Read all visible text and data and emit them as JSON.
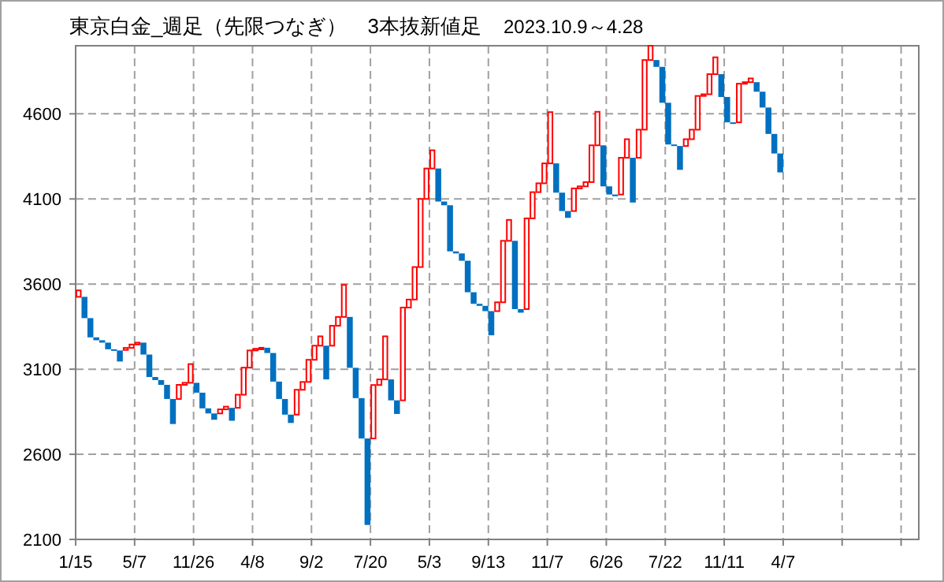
{
  "chart_data": {
    "type": "bar",
    "title": "東京白金_週足（先限つなぎ）　3本抜新値足",
    "subtitle": "2023.10.9～4.28",
    "categories": [
      "1/15",
      null,
      null,
      null,
      null,
      null,
      null,
      null,
      null,
      null,
      "5/7",
      null,
      null,
      null,
      null,
      null,
      null,
      null,
      null,
      null,
      "11/26",
      null,
      null,
      null,
      null,
      null,
      null,
      null,
      null,
      null,
      "4/8",
      null,
      null,
      null,
      null,
      null,
      null,
      null,
      null,
      null,
      "9/2",
      null,
      null,
      null,
      null,
      null,
      null,
      null,
      null,
      null,
      "7/20",
      null,
      null,
      null,
      null,
      null,
      null,
      null,
      null,
      null,
      "5/3",
      null,
      null,
      null,
      null,
      null,
      null,
      null,
      null,
      null,
      "9/13",
      null,
      null,
      null,
      null,
      null,
      null,
      null,
      null,
      null,
      "11/7",
      null,
      null,
      null,
      null,
      null,
      null,
      null,
      null,
      null,
      "6/26",
      null,
      null,
      null,
      null,
      null,
      null,
      null,
      null,
      null,
      "7/22",
      null,
      null,
      null,
      null,
      null,
      null,
      null,
      null,
      null,
      "11/11",
      null,
      null,
      null,
      null,
      null,
      null,
      null,
      null,
      null,
      "4/7",
      null,
      null,
      null,
      null,
      null,
      null,
      null,
      null,
      null,
      null,
      null,
      null,
      null,
      null,
      null,
      null,
      null,
      null,
      null,
      null,
      null,
      null
    ],
    "base": [
      3525,
      3525,
      3400,
      3287,
      3270,
      3256,
      3217,
      3210,
      3213,
      3225,
      3245,
      3256,
      3186,
      3054,
      3036,
      3008,
      2925,
      2925,
      3008,
      3020,
      3020,
      2962,
      2870,
      2840,
      2840,
      2864,
      2873,
      2873,
      2950,
      3109,
      3210,
      3220,
      3226,
      3195,
      3027,
      2925,
      2833,
      2833,
      2979,
      3025,
      3155,
      3238,
      3238,
      3238,
      3355,
      3407,
      3407,
      3108,
      2930,
      2693,
      2693,
      3007,
      3040,
      3040,
      2917,
      2917,
      3462,
      3509,
      3700,
      4100,
      4279,
      4279,
      4085,
      4063,
      3792,
      3780,
      3737,
      3552,
      3484,
      3472,
      3441,
      3441,
      3493,
      3854,
      3854,
      3453,
      3453,
      3986,
      4140,
      4192,
      4309,
      4309,
      4137,
      4029,
      4029,
      4162,
      4174,
      4199,
      4415,
      4415,
      4174,
      4126,
      4126,
      4342,
      4342,
      4342,
      4507,
      4916,
      4916,
      4876,
      4665,
      4420,
      4411,
      4411,
      4451,
      4507,
      4705,
      4715,
      4833,
      4833,
      4699,
      4550,
      4550,
      4777,
      4786,
      4786,
      4730,
      4637,
      4482,
      4367,
      null,
      null,
      null,
      null,
      null,
      null,
      null,
      null,
      null,
      null,
      null,
      null,
      null,
      null,
      null,
      null,
      null,
      null,
      null,
      null,
      null,
      null,
      null
    ],
    "values": [
      38,
      -125,
      -113,
      -17,
      -14,
      -39,
      -7,
      -65,
      12,
      20,
      11,
      -70,
      -132,
      -18,
      -28,
      -83,
      -147,
      83,
      12,
      110,
      -58,
      -92,
      -30,
      -37,
      24,
      16,
      -76,
      77,
      159,
      101,
      10,
      6,
      -31,
      -168,
      -102,
      -92,
      -49,
      146,
      46,
      130,
      83,
      55,
      -198,
      117,
      52,
      188,
      -299,
      -178,
      -237,
      -508,
      314,
      33,
      253,
      -123,
      -80,
      545,
      47,
      191,
      400,
      179,
      107,
      -194,
      -22,
      -271,
      -12,
      -43,
      -185,
      -68,
      -12,
      -31,
      -142,
      52,
      361,
      123,
      -401,
      -21,
      533,
      154,
      52,
      117,
      301,
      -172,
      -108,
      -40,
      133,
      12,
      25,
      216,
      197,
      -241,
      -48,
      -10,
      216,
      109,
      -263,
      165,
      409,
      84,
      -40,
      -211,
      -245,
      -9,
      -140,
      40,
      56,
      198,
      10,
      118,
      99,
      -134,
      -149,
      -9,
      227,
      9,
      22,
      -56,
      -93,
      -155,
      -115,
      -111,
      null,
      null,
      null,
      null,
      null,
      null,
      null,
      null,
      null,
      null,
      null,
      null,
      null,
      null,
      null,
      null,
      null,
      null,
      null,
      null,
      null,
      null,
      null
    ],
    "colors": [
      "#ff0000",
      "#0070c0",
      "#0070c0",
      "#0070c0",
      "#0070c0",
      "#0070c0",
      "#0070c0",
      "#0070c0",
      "#ff0000",
      "#ff0000",
      "#ff0000",
      "#0070c0",
      "#0070c0",
      "#0070c0",
      "#0070c0",
      "#0070c0",
      "#0070c0",
      "#ff0000",
      "#ff0000",
      "#ff0000",
      "#0070c0",
      "#0070c0",
      "#0070c0",
      "#0070c0",
      "#ff0000",
      "#ff0000",
      "#0070c0",
      "#ff0000",
      "#ff0000",
      "#ff0000",
      "#ff0000",
      "#ff0000",
      "#0070c0",
      "#0070c0",
      "#0070c0",
      "#0070c0",
      "#0070c0",
      "#ff0000",
      "#ff0000",
      "#ff0000",
      "#ff0000",
      "#ff0000",
      "#0070c0",
      "#ff0000",
      "#ff0000",
      "#ff0000",
      "#0070c0",
      "#0070c0",
      "#0070c0",
      "#0070c0",
      "#ff0000",
      "#ff0000",
      "#ff0000",
      "#0070c0",
      "#0070c0",
      "#ff0000",
      "#ff0000",
      "#ff0000",
      "#ff0000",
      "#ff0000",
      "#ff0000",
      "#0070c0",
      "#0070c0",
      "#0070c0",
      "#0070c0",
      "#0070c0",
      "#0070c0",
      "#0070c0",
      "#0070c0",
      "#0070c0",
      "#0070c0",
      "#ff0000",
      "#ff0000",
      "#ff0000",
      "#0070c0",
      "#0070c0",
      "#ff0000",
      "#ff0000",
      "#ff0000",
      "#ff0000",
      "#ff0000",
      "#0070c0",
      "#0070c0",
      "#0070c0",
      "#ff0000",
      "#ff0000",
      "#ff0000",
      "#ff0000",
      "#ff0000",
      "#0070c0",
      "#0070c0",
      "#0070c0",
      "#ff0000",
      "#ff0000",
      "#0070c0",
      "#ff0000",
      "#ff0000",
      "#ff0000",
      "#0070c0",
      "#0070c0",
      "#0070c0",
      "#0070c0",
      "#0070c0",
      "#ff0000",
      "#ff0000",
      "#ff0000",
      "#ff0000",
      "#ff0000",
      "#ff0000",
      "#0070c0",
      "#0070c0",
      "#0070c0",
      "#ff0000",
      "#ff0000",
      "#ff0000",
      "#0070c0",
      "#0070c0",
      "#0070c0",
      "#0070c0",
      "#0070c0",
      null,
      null,
      null,
      null,
      null,
      null,
      null,
      null,
      null,
      null,
      null,
      null,
      null,
      null,
      null,
      null,
      null,
      null,
      null,
      null,
      null,
      null,
      null
    ],
    "ylim": [
      2100,
      5000
    ],
    "yticks": [
      2100,
      2600,
      3100,
      3600,
      4100,
      4600
    ],
    "grid": true
  }
}
